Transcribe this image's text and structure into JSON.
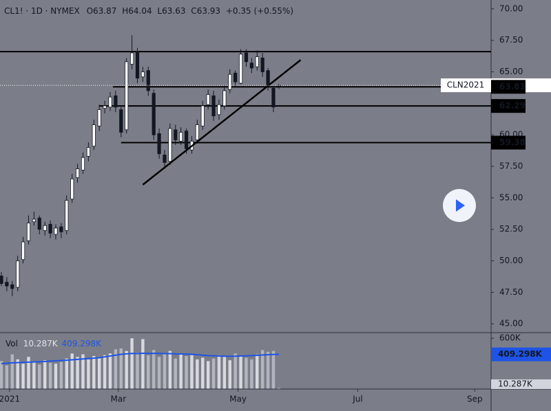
{
  "chart_data": {
    "type": "candlestick",
    "legend": {
      "symbol": "CL1! · 1D · NYMEX",
      "open_label": "O",
      "high_label": "H",
      "low_label": "L",
      "close_label": "C",
      "change": "+0.35 (+0.55%)"
    },
    "x": [
      0,
      2,
      4,
      6,
      8,
      10,
      12,
      14,
      16,
      18,
      20,
      22,
      24,
      26,
      28,
      30,
      32,
      34,
      36,
      38,
      40,
      42,
      44,
      46,
      48,
      50,
      52,
      54,
      56,
      58,
      60,
      62,
      64,
      66,
      68,
      70,
      72,
      74,
      76,
      78,
      80,
      82,
      84,
      86,
      88,
      90,
      92,
      94,
      96,
      98,
      100,
      102
    ],
    "open": [
      48.8,
      48.3,
      48.1,
      47.9,
      50.1,
      51.6,
      53.1,
      53.4,
      52.4,
      52.9,
      52.1,
      52.7,
      52.4,
      54.9,
      56.6,
      57.2,
      58.3,
      59.1,
      60.7,
      62.1,
      62.2,
      63.1,
      62.0,
      60.4,
      65.6,
      66.6,
      64.6,
      65.1,
      63.3,
      60.1,
      58.4,
      57.9,
      60.4,
      59.5,
      60.3,
      58.8,
      59.6,
      60.7,
      62.4,
      63.1,
      61.6,
      62.3,
      63.6,
      64.9,
      64.1,
      66.5,
      65.7,
      65.4,
      66.1,
      65.1,
      63.7,
      63.87
    ],
    "high": [
      49.1,
      48.7,
      48.4,
      50.4,
      51.9,
      53.6,
      53.9,
      53.6,
      53.1,
      53.2,
      52.9,
      53.0,
      55.2,
      56.9,
      57.7,
      58.6,
      59.4,
      61.2,
      62.4,
      62.7,
      63.4,
      63.5,
      62.3,
      66.1,
      67.9,
      66.9,
      65.4,
      65.4,
      63.6,
      60.5,
      58.8,
      60.9,
      60.8,
      60.6,
      60.5,
      59.9,
      61.2,
      62.7,
      63.6,
      63.5,
      62.8,
      63.9,
      65.2,
      65.1,
      66.8,
      66.8,
      66.1,
      66.7,
      66.5,
      65.3,
      63.9,
      64.04
    ],
    "low": [
      48.0,
      47.6,
      47.2,
      47.6,
      49.8,
      51.3,
      52.8,
      52.1,
      52.0,
      51.8,
      51.7,
      51.8,
      52.1,
      54.6,
      56.2,
      56.9,
      57.9,
      58.8,
      60.3,
      61.7,
      61.9,
      61.8,
      59.8,
      60.1,
      65.2,
      64.1,
      64.2,
      63.1,
      59.6,
      58.1,
      57.3,
      57.6,
      59.2,
      59.2,
      58.5,
      58.5,
      59.3,
      60.4,
      62.0,
      61.1,
      61.2,
      62.0,
      63.3,
      63.8,
      64.0,
      65.4,
      64.9,
      65.1,
      64.6,
      63.5,
      61.8,
      63.63
    ],
    "close": [
      48.2,
      48.0,
      47.8,
      50.0,
      51.5,
      53.0,
      53.3,
      52.5,
      52.8,
      52.2,
      52.6,
      52.3,
      54.8,
      56.5,
      57.3,
      58.2,
      59.0,
      60.8,
      62.0,
      62.3,
      63.0,
      62.2,
      60.2,
      65.8,
      66.5,
      64.5,
      65.0,
      63.5,
      60.0,
      58.5,
      57.8,
      60.5,
      59.6,
      60.2,
      58.9,
      59.5,
      60.8,
      62.3,
      63.2,
      61.5,
      62.4,
      63.5,
      64.8,
      64.2,
      66.4,
      65.8,
      65.3,
      66.2,
      65.0,
      63.9,
      62.2,
      63.93
    ],
    "up_color": "#ffffff",
    "down_color": "#131722",
    "xlim": [
      -0.5,
      180
    ],
    "xticks": [
      {
        "value": 3,
        "label": "2021"
      },
      {
        "value": 43,
        "label": "Mar"
      },
      {
        "value": 87,
        "label": "May"
      },
      {
        "value": 131,
        "label": "Jul"
      },
      {
        "value": 174,
        "label": "Sep"
      }
    ],
    "ylim": [
      44.3,
      70.7
    ],
    "yticks": [
      {
        "value": 45,
        "label": "45.00"
      },
      {
        "value": 47.5,
        "label": "47.50"
      },
      {
        "value": 50,
        "label": "50.00"
      },
      {
        "value": 52.5,
        "label": "52.50"
      },
      {
        "value": 55,
        "label": "55.00"
      },
      {
        "value": 57.5,
        "label": "57.50"
      },
      {
        "value": 60,
        "label": "60.00"
      },
      {
        "value": 62.5,
        "label": "62.50"
      },
      {
        "value": 65,
        "label": "65.00"
      },
      {
        "value": 67.5,
        "label": "67.50"
      },
      {
        "value": 70,
        "label": "70.00"
      }
    ],
    "levels": [
      {
        "value": 66.6
      },
      {
        "value": 63.81,
        "start": 41
      },
      {
        "value": 62.29,
        "start": 36
      },
      {
        "value": 59.38,
        "start": 44
      }
    ],
    "trend_line": {
      "x": [
        52,
        110
      ],
      "values": [
        56.04,
        65.94
      ]
    },
    "last_price_label": "CLN2021",
    "volume": {
      "name": "Vol",
      "values": [
        330000,
        280000,
        410000,
        350000,
        300000,
        380000,
        320000,
        290000,
        340000,
        310000,
        300000,
        320000,
        360000,
        420000,
        380000,
        410000,
        350000,
        390000,
        370000,
        400000,
        420000,
        470000,
        480000,
        450000,
        600000,
        430000,
        590000,
        400000,
        460000,
        380000,
        420000,
        450000,
        360000,
        410000,
        390000,
        400000,
        350000,
        370000,
        330000,
        360000,
        400000,
        380000,
        340000,
        420000,
        390000,
        370000,
        350000,
        410000,
        460000,
        440000,
        450000,
        10287
      ],
      "last_label": "10.287K",
      "ylim": [
        0,
        650000
      ],
      "yticks": [
        {
          "value": 600000,
          "label": "600K"
        }
      ]
    },
    "volume_ma": {
      "color": "#1e53e5",
      "values": [
        300000,
        305000,
        310000,
        312000,
        315000,
        318000,
        320000,
        322000,
        325000,
        330000,
        333000,
        336000,
        340000,
        345000,
        350000,
        355000,
        360000,
        365000,
        370000,
        380000,
        390000,
        400000,
        410000,
        415000,
        420000,
        418000,
        422000,
        420000,
        421000,
        420000,
        418000,
        418000,
        415000,
        414000,
        412000,
        410000,
        405000,
        400000,
        395000,
        392000,
        390000,
        388000,
        387000,
        388000,
        390000,
        392000,
        395000,
        398000,
        402000,
        405000,
        408000,
        409298
      ],
      "last_label": "409.298K"
    }
  }
}
